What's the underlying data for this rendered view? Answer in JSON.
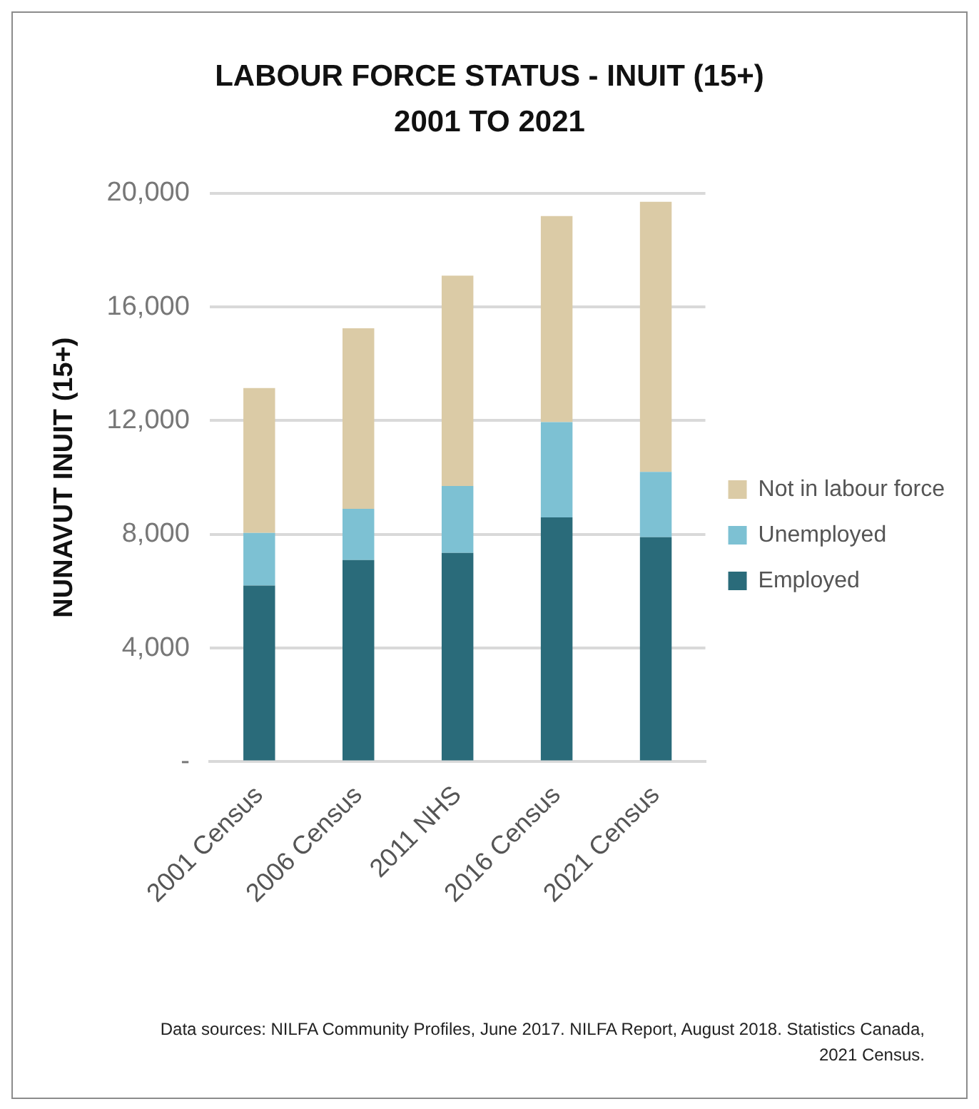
{
  "chart_data": {
    "type": "bar",
    "title": "LABOUR FORCE STATUS - INUIT (15+)\n2001 TO 2021",
    "ylabel": "NUNAVUT INUIT (15+)",
    "categories": [
      "2001 Census",
      "2006 Census",
      "2011 NHS",
      "2016 Census",
      "2021 Census"
    ],
    "stacked": true,
    "series": [
      {
        "name": "Employed",
        "color": "#2a6b7a",
        "values": [
          6200,
          7100,
          7350,
          8600,
          7900
        ]
      },
      {
        "name": "Unemployed",
        "color": "#7dc1d3",
        "values": [
          1850,
          1800,
          2350,
          3350,
          2300
        ]
      },
      {
        "name": "Not in labour force",
        "color": "#dbcba6",
        "values": [
          5100,
          6350,
          7400,
          7250,
          9500
        ]
      }
    ],
    "ylim": [
      0,
      20000
    ],
    "yticks": [
      {
        "value": 0,
        "label": "-"
      },
      {
        "value": 4000,
        "label": "4,000"
      },
      {
        "value": 8000,
        "label": "8,000"
      },
      {
        "value": 12000,
        "label": "12,000"
      },
      {
        "value": 16000,
        "label": "16,000"
      },
      {
        "value": 20000,
        "label": "20,000"
      }
    ],
    "grid": "y",
    "legend": "right",
    "annotations": [
      "Data sources: NILFA Community Profiles, June 2017. NILFA Report, August 2018. Statistics Canada, 2021 Census."
    ]
  }
}
